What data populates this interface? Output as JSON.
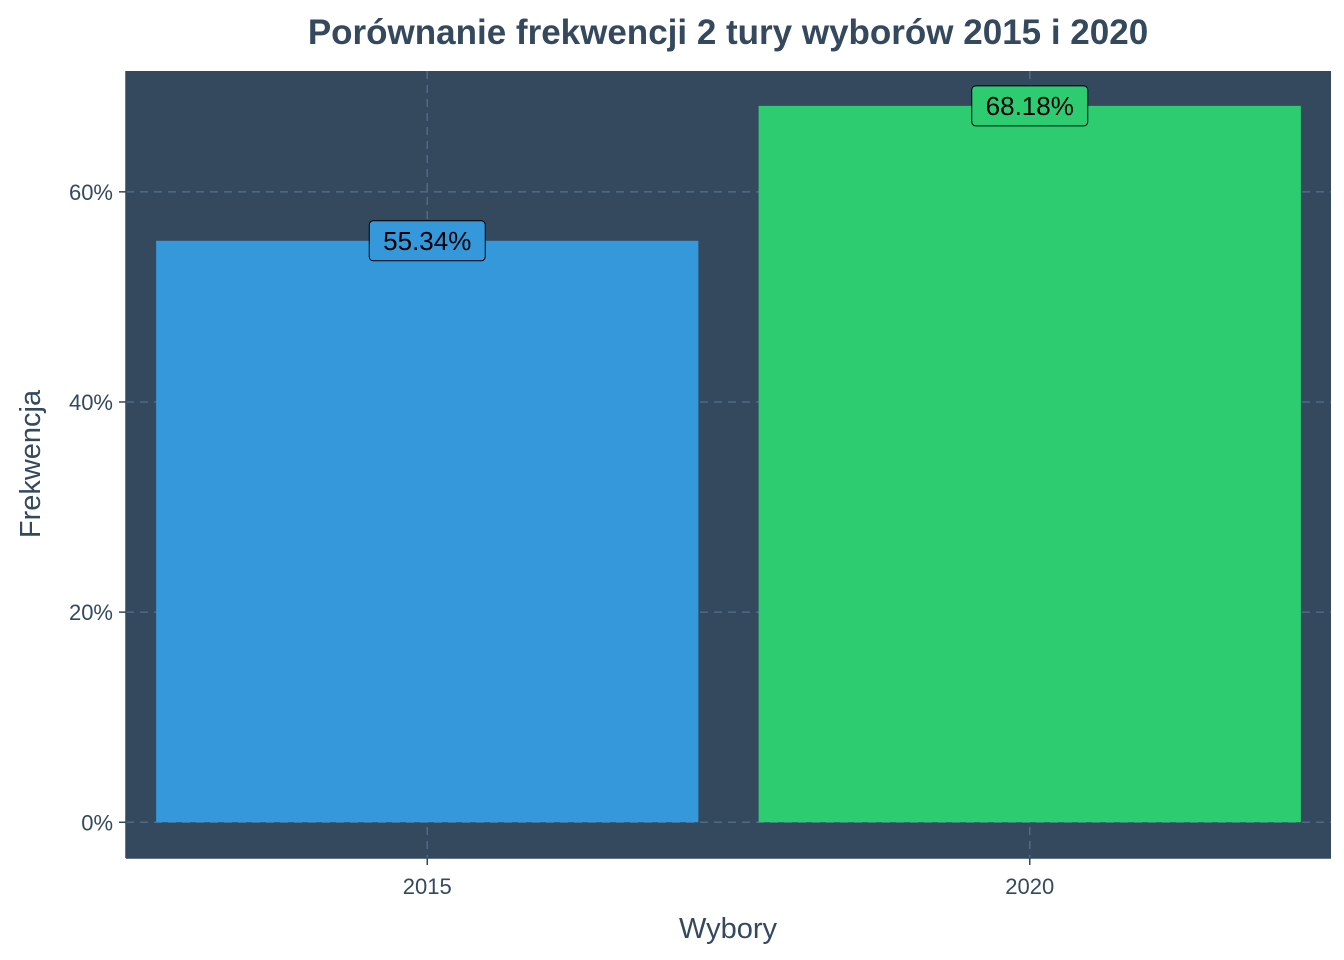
{
  "chart_data": {
    "type": "bar",
    "title": "Porównanie frekwencji 2 tury wyborów 2015 i 2020",
    "xlabel": "Wybory",
    "ylabel": "Frekwencja",
    "categories": [
      "2015",
      "2020"
    ],
    "values": [
      55.34,
      68.18
    ],
    "data_labels": [
      "55.34%",
      "68.18%"
    ],
    "bar_colors": [
      "#3498db",
      "#2ecc71"
    ],
    "y_ticks": [
      0,
      20,
      40,
      60
    ],
    "y_tick_labels": [
      "0%",
      "20%",
      "40%",
      "60%"
    ],
    "ylim": [
      -3.4,
      71.5
    ],
    "grid": true,
    "legend": "none",
    "colors": {
      "panel_background": "#34495e",
      "grid": "#4d6a86",
      "text": "#34495e"
    }
  }
}
